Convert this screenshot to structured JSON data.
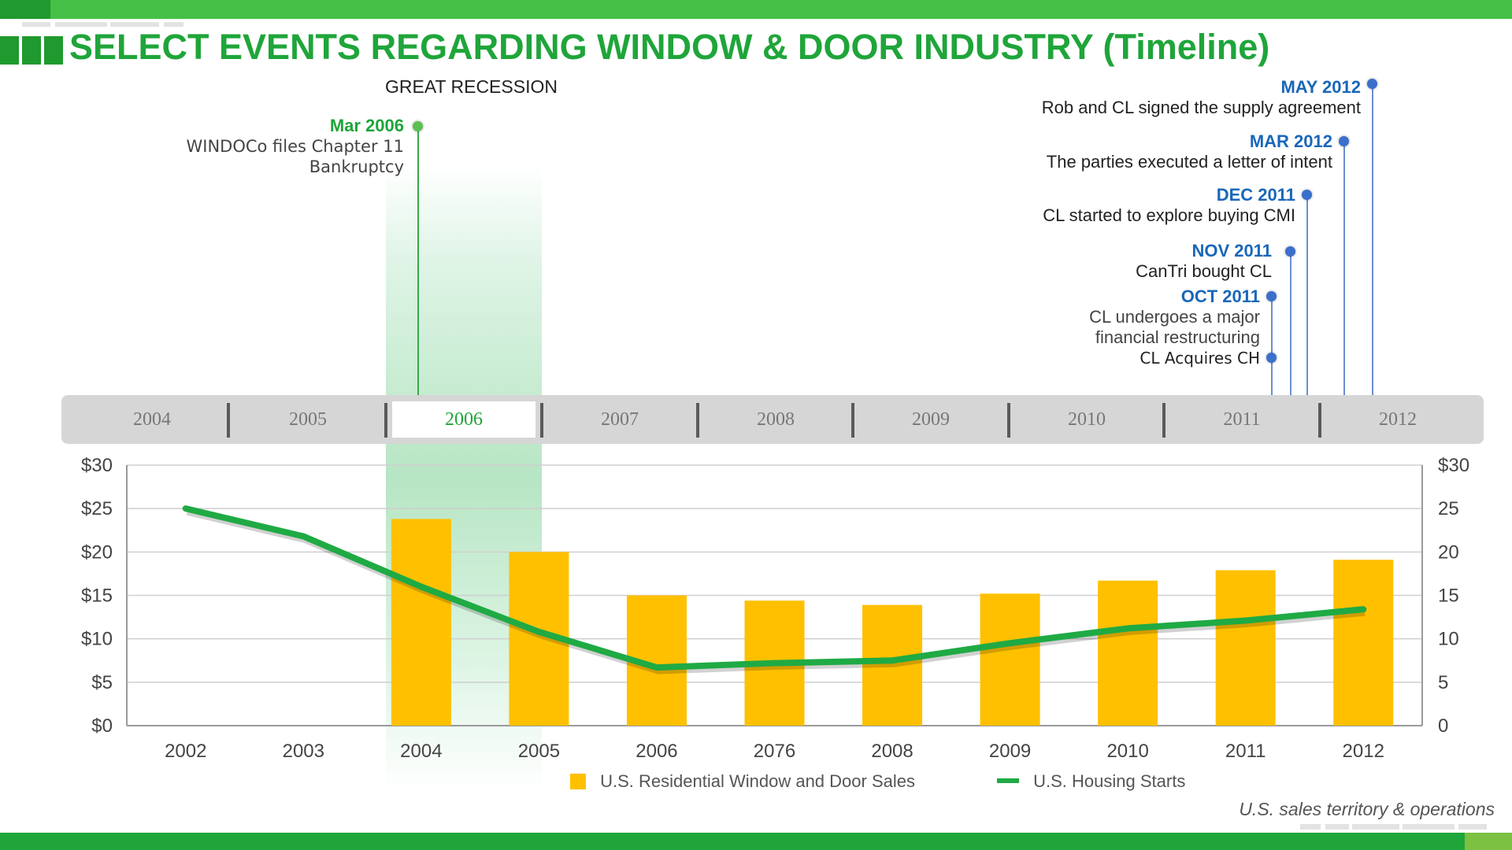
{
  "title": "SELECT EVENTS REGARDING WINDOW & DOOR INDUSTRY (Timeline)",
  "recession_label": "GREAT RECESSION",
  "colors": {
    "brand_green": "#1fa53a",
    "event_blue": "#1a67b8",
    "bar_yellow": "#ffc000",
    "line_green": "#1faa44"
  },
  "timeline": {
    "years": [
      "2004",
      "2005",
      "2006",
      "2007",
      "2008",
      "2009",
      "2010",
      "2011",
      "2012"
    ],
    "active_year": "2006"
  },
  "events": {
    "mar2006": {
      "date": "Mar 2006",
      "desc1": "WINDOCo files Chapter 11",
      "desc2": "Bankruptcy"
    },
    "may2012": {
      "date": "MAY 2012",
      "desc": "Rob and CL signed the supply agreement"
    },
    "mar2012": {
      "date": "MAR 2012",
      "desc": "The parties executed a letter of intent"
    },
    "dec2011": {
      "date": "DEC 2011",
      "desc": "CL started to explore buying CMI"
    },
    "nov2011": {
      "date": "NOV 2011",
      "desc": "CanTri bought CL"
    },
    "oct2011": {
      "date": "OCT 2011",
      "desc1": "CL undergoes a major",
      "desc2": "financial restructuring",
      "desc3": "CL Acquires CH"
    }
  },
  "footnote": "U.S. sales territory & operations",
  "chart_data": {
    "type": "bar",
    "categories": [
      "2002",
      "2003",
      "2004",
      "2005",
      "2006",
      "2076",
      "2008",
      "2009",
      "2010",
      "2011",
      "2012"
    ],
    "series": [
      {
        "name": "U.S. Residential Window and Door Sales",
        "type": "bar",
        "axis": "left",
        "values": [
          null,
          null,
          23.8,
          20.0,
          15.0,
          14.4,
          13.9,
          15.2,
          16.7,
          17.9,
          19.1
        ]
      },
      {
        "name": "U.S. Housing Starts",
        "type": "line",
        "axis": "right",
        "values": [
          25.0,
          21.8,
          16.0,
          10.8,
          6.7,
          7.2,
          7.5,
          9.5,
          11.2,
          12.1,
          13.4
        ]
      }
    ],
    "left_axis": {
      "ticks": [
        "$0",
        "$5",
        "$10",
        "$15",
        "$20",
        "$25",
        "$30"
      ],
      "range": [
        0,
        30
      ]
    },
    "right_axis": {
      "ticks": [
        "0",
        "5",
        "10",
        "15",
        "20",
        "25",
        "$30"
      ],
      "range": [
        0,
        30
      ]
    },
    "grid": true,
    "legend_position": "bottom"
  }
}
